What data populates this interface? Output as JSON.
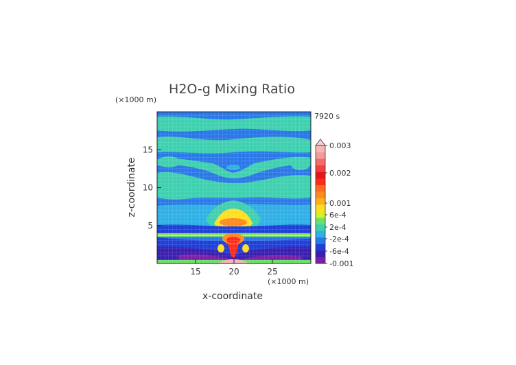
{
  "chart_data": {
    "type": "heatmap",
    "title": "H2O-g Mixing Ratio",
    "time_label": "7920 s",
    "xlabel": "x-coordinate",
    "ylabel": "z-coordinate",
    "x_unit": "(×1000 m)",
    "y_unit": "(×1000 m)",
    "x_ticks": [
      "15",
      "20",
      "25"
    ],
    "x_tick_values": [
      15,
      20,
      25
    ],
    "y_ticks": [
      "5",
      "10",
      "15"
    ],
    "y_tick_values": [
      5,
      10,
      15
    ],
    "xlim": [
      10,
      30
    ],
    "ylim": [
      0,
      20
    ],
    "colorbar": {
      "labels": [
        "0.003",
        "0.002",
        "0.001",
        "6e-4",
        "2e-4",
        "-2e-4",
        "-6e-4",
        "-0.001"
      ],
      "colors": [
        "#7a1fa8",
        "#3a1fb0",
        "#1f3fd6",
        "#2a78e8",
        "#2fb0e6",
        "#3fd0b0",
        "#6ee06a",
        "#d8f020",
        "#ffe020",
        "#ffb020",
        "#ff8a20",
        "#ff6a20",
        "#ff2a1a",
        "#e01818",
        "#f04040",
        "#f26a6a",
        "#f59a9a",
        "#f7b6b6"
      ],
      "values": [
        -0.001,
        -0.0006,
        -0.0002,
        0.0002,
        0.0006,
        0.001,
        0.002,
        0.003
      ]
    }
  }
}
